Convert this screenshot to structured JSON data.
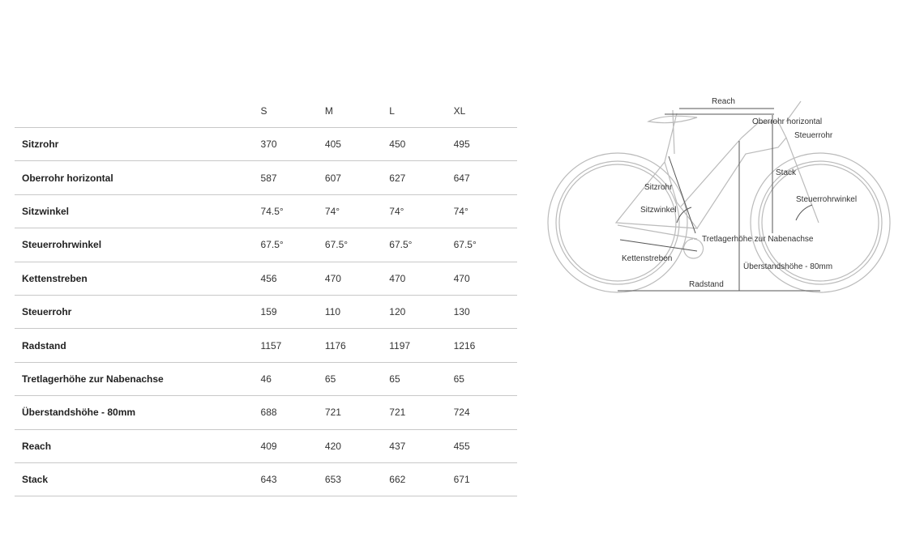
{
  "table": {
    "sizes": [
      "S",
      "M",
      "L",
      "XL"
    ],
    "rows": [
      {
        "label": "Sitzrohr",
        "values": [
          "370",
          "405",
          "450",
          "495"
        ]
      },
      {
        "label": "Oberrohr horizontal",
        "values": [
          "587",
          "607",
          "627",
          "647"
        ]
      },
      {
        "label": "Sitzwinkel",
        "values": [
          "74.5°",
          "74°",
          "74°",
          "74°"
        ]
      },
      {
        "label": "Steuerrohrwinkel",
        "values": [
          "67.5°",
          "67.5°",
          "67.5°",
          "67.5°"
        ]
      },
      {
        "label": "Kettenstreben",
        "values": [
          "456",
          "470",
          "470",
          "470"
        ]
      },
      {
        "label": "Steuerrohr",
        "values": [
          "159",
          "110",
          "120",
          "130"
        ]
      },
      {
        "label": "Radstand",
        "values": [
          "1157",
          "1176",
          "1197",
          "1216"
        ]
      },
      {
        "label": "Tretlagerhöhe zur Nabenachse",
        "values": [
          "46",
          "65",
          "65",
          "65"
        ]
      },
      {
        "label": "Überstandshöhe - 80mm",
        "values": [
          "688",
          "721",
          "721",
          "724"
        ]
      },
      {
        "label": "Reach",
        "values": [
          "409",
          "420",
          "437",
          "455"
        ]
      },
      {
        "label": "Stack",
        "values": [
          "643",
          "653",
          "662",
          "671"
        ]
      }
    ]
  },
  "diagram": {
    "labels": {
      "reach": "Reach",
      "oberrohr": "Oberrohr horizontal",
      "steuerrohr": "Steuerrohr",
      "stack": "Stack",
      "sitzrohr": "Sitzrohr",
      "steuerrohrwinkel": "Steuerrohrwinkel",
      "sitzwinkel": "Sitzwinkel",
      "tretlager": "Tretlagerhöhe zur Nabenachse",
      "kettenstreben": "Kettenstreben",
      "ueberstand": "Überstandshöhe - 80mm",
      "radstand": "Radstand"
    }
  }
}
